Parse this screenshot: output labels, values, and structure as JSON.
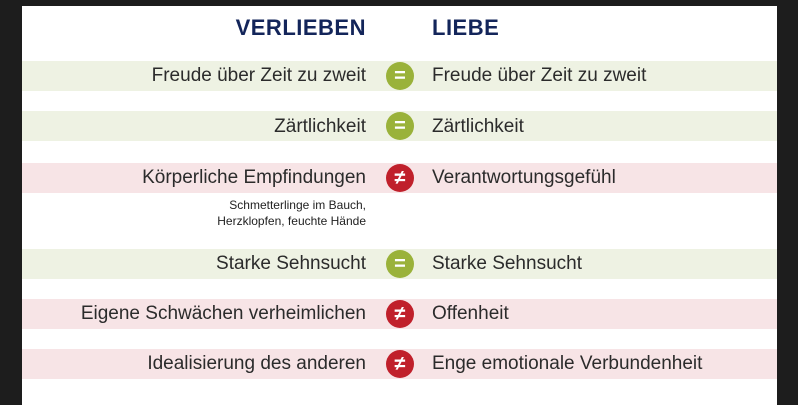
{
  "headers": {
    "left": "VERLIEBEN",
    "right": "LIEBE"
  },
  "rows": [
    {
      "left": "Freude über Zeit zu zweit",
      "right": "Freude über Zeit zu zweit",
      "relation": "="
    },
    {
      "left": "Zärtlichkeit",
      "right": "Zärtlichkeit",
      "relation": "="
    },
    {
      "left": "Körperliche Empfindungen",
      "right": "Verantwortungsgefühl",
      "relation": "≠",
      "note_lines": [
        "Schmetterlinge im Bauch,",
        "Herzklopfen, feuchte Hände"
      ]
    },
    {
      "left": "Starke Sehnsucht",
      "right": "Starke Sehnsucht",
      "relation": "="
    },
    {
      "left": "Eigene Schwächen verheimlichen",
      "right": "Offenheit",
      "relation": "≠"
    },
    {
      "left": "Idealisierung des anderen",
      "right": "Enge emotionale Verbundenheit",
      "relation": "≠"
    }
  ],
  "colors": {
    "equal_badge": "#9ab23a",
    "not_equal_badge": "#c0202b",
    "equal_row_bg": "#eef2e3",
    "not_equal_row_bg": "#f7e4e6",
    "header_text": "#13255a"
  }
}
